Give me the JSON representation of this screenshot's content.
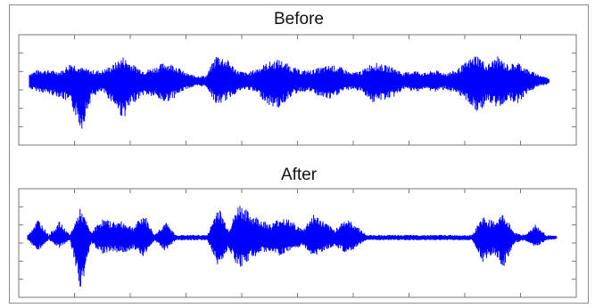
{
  "chart_data": [
    {
      "type": "line",
      "title": "Before",
      "xlabel": "",
      "ylabel": "",
      "grid": false,
      "color": "#0000ff",
      "series": [
        {
          "name": "",
          "x": [
            0,
            0.02,
            0.04,
            0.06,
            0.08,
            0.1,
            0.12,
            0.14,
            0.16,
            0.18,
            0.2,
            0.22,
            0.24,
            0.26,
            0.28,
            0.3,
            0.32,
            0.34,
            0.36,
            0.38,
            0.4,
            0.42,
            0.44,
            0.46,
            0.48,
            0.5,
            0.52,
            0.54,
            0.56,
            0.58,
            0.6,
            0.62,
            0.64,
            0.66,
            0.68,
            0.7,
            0.72,
            0.74,
            0.76,
            0.78,
            0.8,
            0.82,
            0.84,
            0.86,
            0.88,
            0.9,
            0.92,
            0.94,
            0.96,
            0.98,
            1.0
          ],
          "upper": [
            0.15,
            0.22,
            0.2,
            0.18,
            0.35,
            0.25,
            0.2,
            0.2,
            0.3,
            0.45,
            0.3,
            0.2,
            0.25,
            0.35,
            0.3,
            0.15,
            0.1,
            0.1,
            0.5,
            0.4,
            0.2,
            0.15,
            0.25,
            0.35,
            0.4,
            0.3,
            0.2,
            0.2,
            0.25,
            0.3,
            0.25,
            0.15,
            0.2,
            0.35,
            0.3,
            0.25,
            0.15,
            0.2,
            0.15,
            0.2,
            0.15,
            0.2,
            0.35,
            0.5,
            0.3,
            0.45,
            0.3,
            0.35,
            0.2,
            0.12,
            0.05
          ],
          "lower": [
            -0.15,
            -0.2,
            -0.25,
            -0.3,
            -0.45,
            -0.9,
            -0.3,
            -0.2,
            -0.4,
            -0.7,
            -0.4,
            -0.25,
            -0.3,
            -0.4,
            -0.3,
            -0.15,
            -0.1,
            -0.1,
            -0.45,
            -0.35,
            -0.2,
            -0.15,
            -0.25,
            -0.45,
            -0.5,
            -0.3,
            -0.2,
            -0.2,
            -0.3,
            -0.35,
            -0.2,
            -0.15,
            -0.2,
            -0.4,
            -0.35,
            -0.3,
            -0.15,
            -0.2,
            -0.15,
            -0.2,
            -0.15,
            -0.25,
            -0.35,
            -0.6,
            -0.4,
            -0.5,
            -0.35,
            -0.4,
            -0.2,
            -0.1,
            -0.05
          ]
        }
      ]
    },
    {
      "type": "line",
      "title": "After",
      "xlabel": "",
      "ylabel": "",
      "grid": false,
      "color": "#0000ff",
      "series": [
        {
          "name": "",
          "x": [
            0,
            0.02,
            0.04,
            0.06,
            0.08,
            0.1,
            0.12,
            0.14,
            0.16,
            0.18,
            0.2,
            0.22,
            0.24,
            0.26,
            0.28,
            0.3,
            0.32,
            0.34,
            0.36,
            0.38,
            0.4,
            0.42,
            0.44,
            0.46,
            0.48,
            0.5,
            0.52,
            0.54,
            0.56,
            0.58,
            0.6,
            0.62,
            0.64,
            0.66,
            0.68,
            0.7,
            0.72,
            0.74,
            0.76,
            0.78,
            0.8,
            0.82,
            0.84,
            0.86,
            0.88,
            0.9,
            0.92,
            0.94,
            0.96,
            0.98,
            1.0
          ],
          "upper": [
            0.05,
            0.35,
            0.05,
            0.3,
            0.05,
            0.55,
            0.1,
            0.35,
            0.3,
            0.3,
            0.2,
            0.45,
            0.05,
            0.3,
            0.05,
            0.05,
            0.05,
            0.05,
            0.6,
            0.15,
            0.65,
            0.45,
            0.35,
            0.25,
            0.4,
            0.3,
            0.15,
            0.45,
            0.3,
            0.15,
            0.35,
            0.25,
            0.05,
            0.05,
            0.05,
            0.05,
            0.05,
            0.05,
            0.05,
            0.05,
            0.05,
            0.05,
            0.05,
            0.4,
            0.3,
            0.45,
            0.1,
            0.05,
            0.25,
            0.05,
            0.03
          ],
          "lower": [
            -0.05,
            -0.25,
            -0.05,
            -0.2,
            -0.05,
            -1.0,
            -0.1,
            -0.3,
            -0.25,
            -0.3,
            -0.2,
            -0.35,
            -0.05,
            -0.25,
            -0.05,
            -0.05,
            -0.05,
            -0.05,
            -0.55,
            -0.2,
            -0.6,
            -0.4,
            -0.3,
            -0.25,
            -0.35,
            -0.25,
            -0.15,
            -0.35,
            -0.25,
            -0.15,
            -0.3,
            -0.2,
            -0.05,
            -0.05,
            -0.05,
            -0.05,
            -0.05,
            -0.05,
            -0.05,
            -0.05,
            -0.05,
            -0.05,
            -0.05,
            -0.45,
            -0.3,
            -0.55,
            -0.1,
            -0.05,
            -0.2,
            -0.05,
            -0.03
          ]
        }
      ]
    }
  ]
}
